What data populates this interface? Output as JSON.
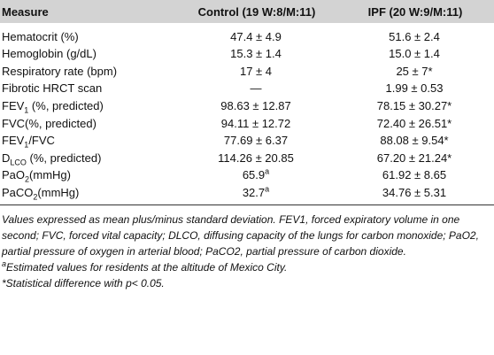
{
  "header": {
    "measure": "Measure",
    "control": "Control (19 W:8/M:11)",
    "ipf": "IPF (20 W:9/M:11)"
  },
  "rows": [
    {
      "label": "Hematocrit (%)",
      "control": "47.4 ± 4.9",
      "ipf": "51.6 ± 2.4"
    },
    {
      "label": "Hemoglobin (g/dL)",
      "control": "15.3 ± 1.4",
      "ipf": "15.0 ± 1.4"
    },
    {
      "label": "Respiratory rate (bpm)",
      "control": "17 ± 4",
      "ipf": "25 ± 7*"
    },
    {
      "label": "Fibrotic HRCT scan",
      "control": "—",
      "ipf": "1.99 ± 0.53"
    },
    {
      "label_main": "FEV",
      "label_sub": "1",
      "label_rest": " (%, predicted)",
      "control": "98.63 ± 12.87",
      "ipf": "78.15 ± 30.27*"
    },
    {
      "label": "FVC(%, predicted)",
      "control": "94.11 ± 12.72",
      "ipf": "72.40 ± 26.51*"
    },
    {
      "label_main": "FEV",
      "label_sub": "1",
      "label_rest": "/FVC",
      "control": "77.69 ± 6.37",
      "ipf": "88.08 ± 9.54*"
    },
    {
      "label_main": "D",
      "label_sub": "LCO",
      "label_rest": " (%, predicted)",
      "control": "114.26 ± 20.85",
      "ipf": "67.20 ± 21.24*"
    },
    {
      "label_main": "PaO",
      "label_sub": "2",
      "label_rest": "(mmHg)",
      "control": "65.9",
      "control_sup": "a",
      "ipf": "61.92 ± 8.65"
    },
    {
      "label_main": "PaCO",
      "label_sub": "2",
      "label_rest": "(mmHg)",
      "control": "32.7",
      "control_sup": "a",
      "ipf": "34.76 ± 5.31"
    }
  ],
  "notes": {
    "main": "Values expressed as mean plus/minus standard deviation. FEV1, forced expiratory volume in one second; FVC, forced vital capacity; DLCO, diffusing capacity of the lungs for carbon monoxide; PaO2, partial pressure of oxygen in arterial blood; PaCO2, partial pressure of carbon dioxide.",
    "footnote_a_mark": "a",
    "footnote_a": "Estimated values for residents at the altitude of Mexico City.",
    "footnote_star": "*Statistical difference with p< 0.05."
  }
}
